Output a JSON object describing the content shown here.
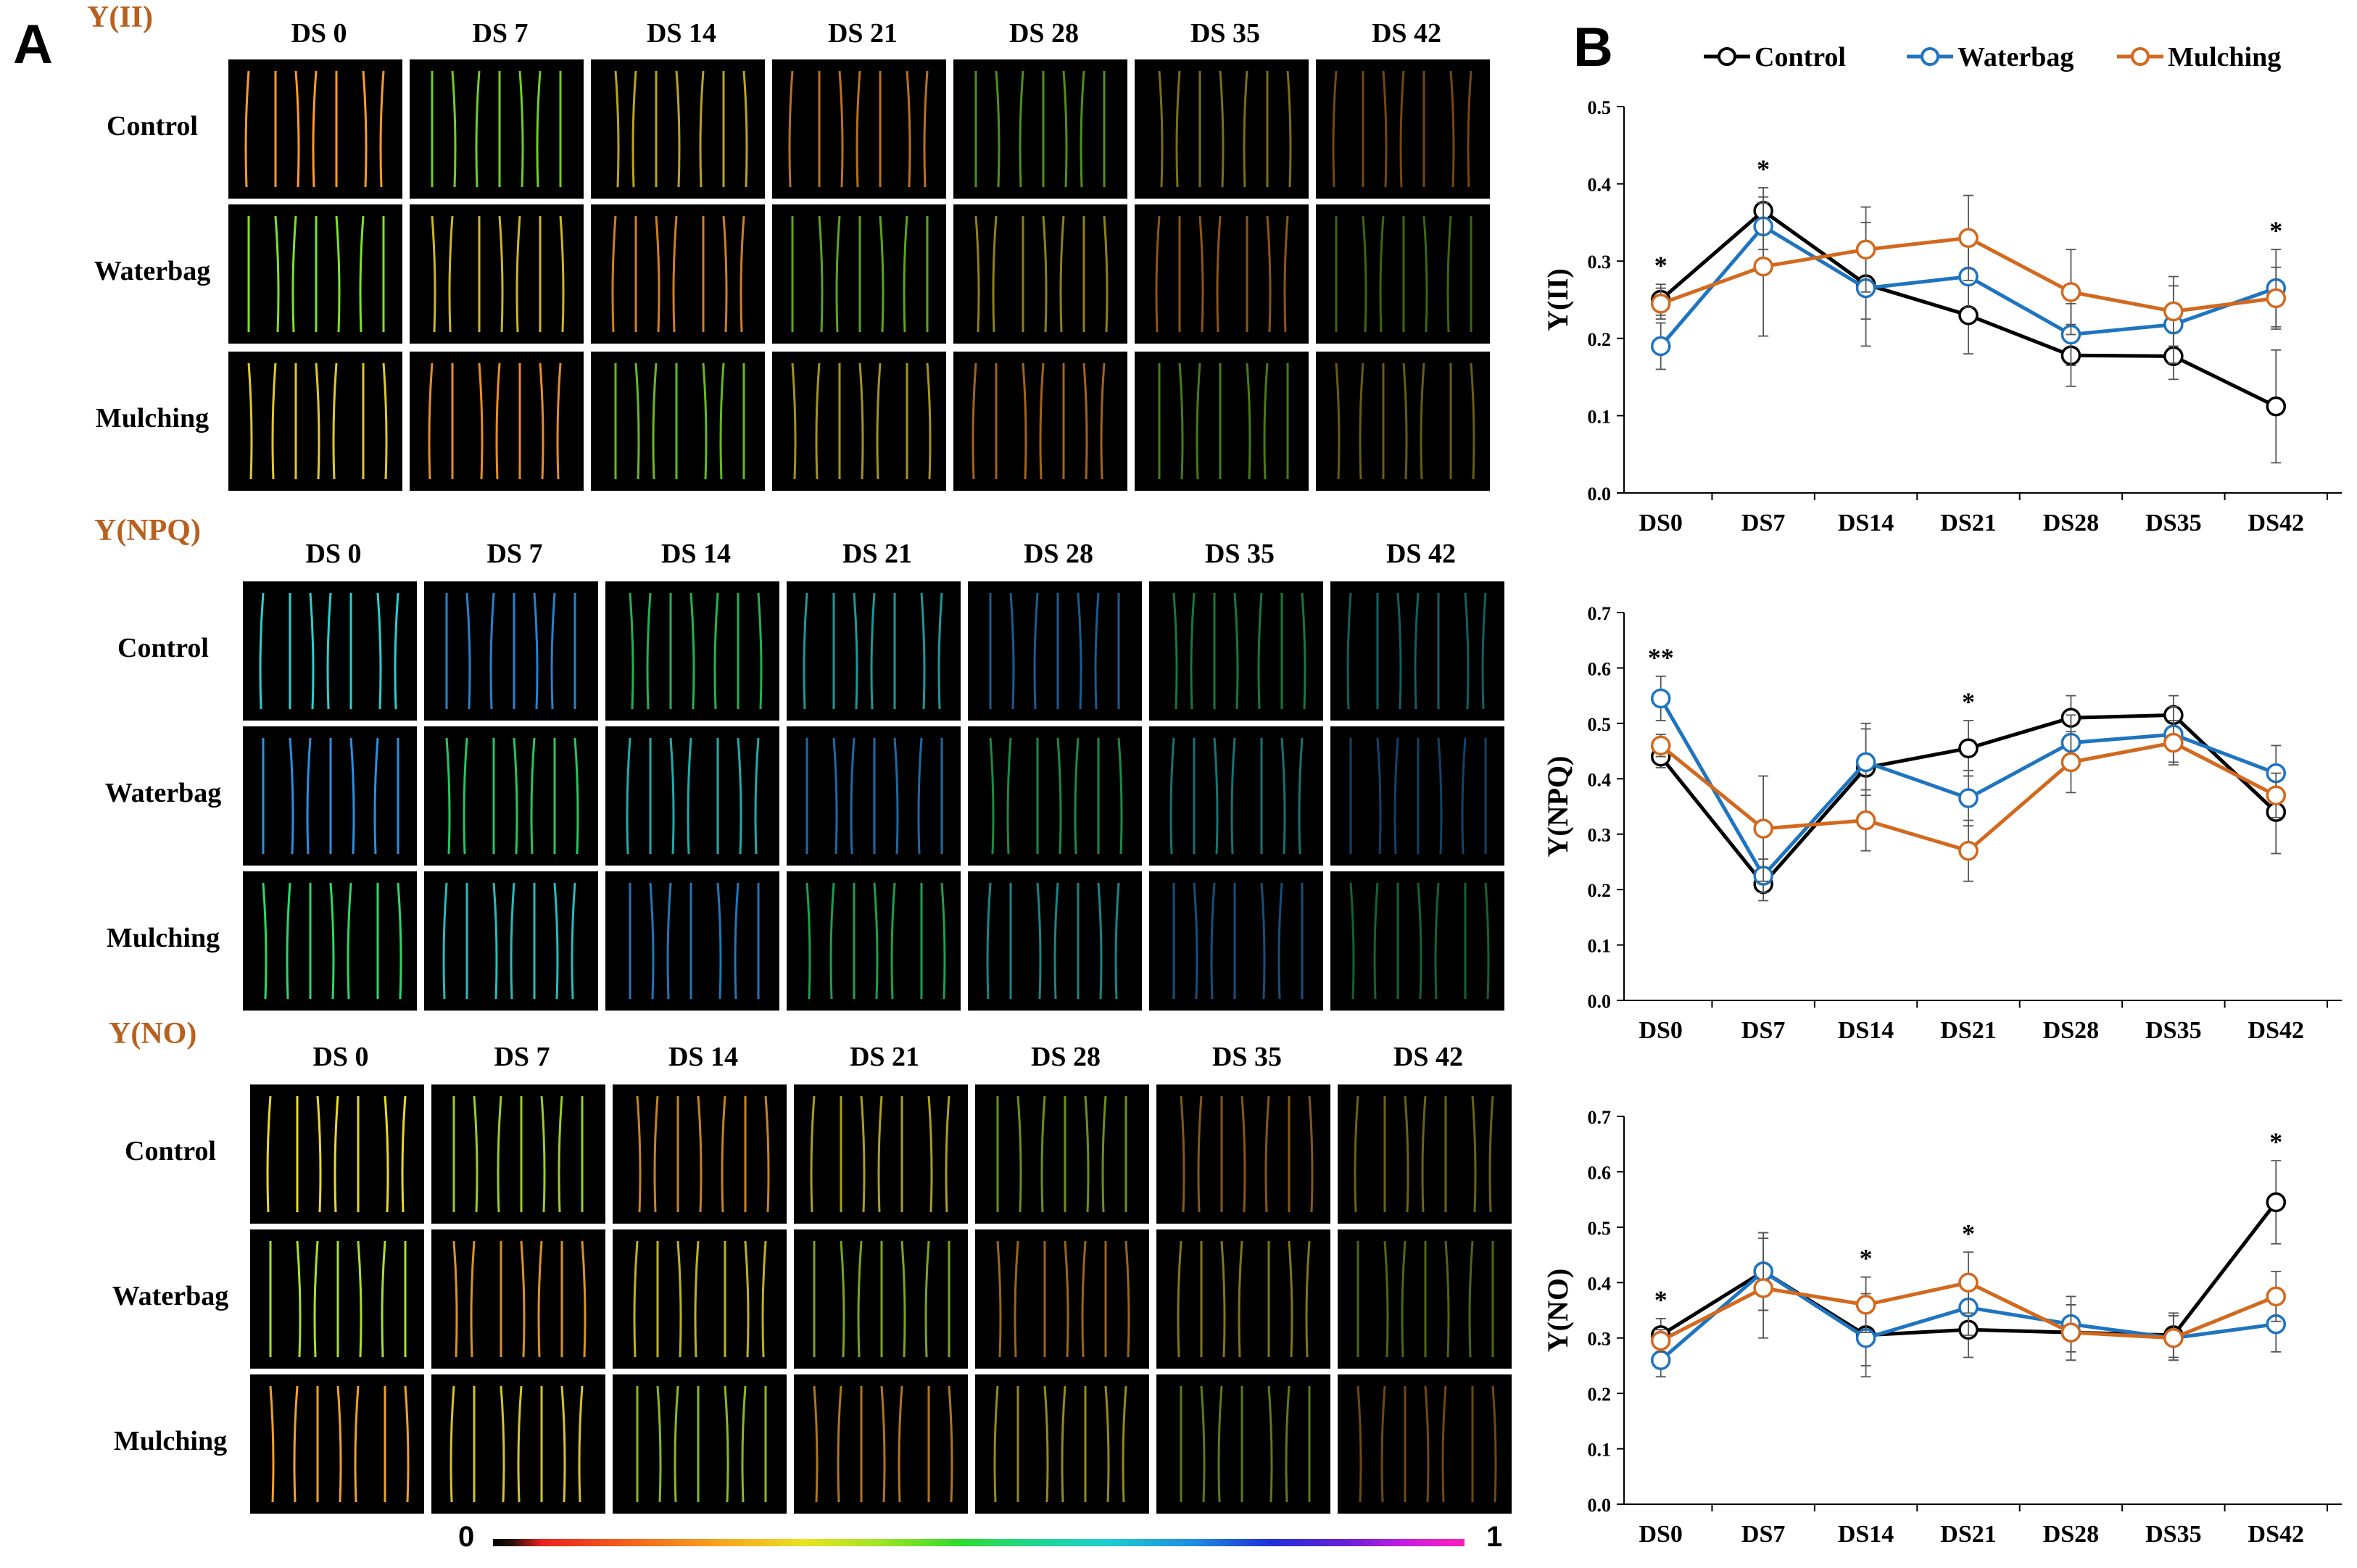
{
  "panelA": {
    "letter": "A",
    "sections": [
      {
        "title": "Y(II)",
        "columns": [
          "DS 0",
          "DS 7",
          "DS 14",
          "DS 21",
          "DS 28",
          "DS 35",
          "DS 42"
        ],
        "rows": [
          "Control",
          "Waterbag",
          "Mulching"
        ],
        "palette": [
          "#ff9a2a",
          "#7fe02a",
          "#e0c82a"
        ]
      },
      {
        "title": "Y(NPQ)",
        "columns": [
          "DS 0",
          "DS 7",
          "DS 14",
          "DS 21",
          "DS 28",
          "DS 35",
          "DS 42"
        ],
        "rows": [
          "Control",
          "Waterbag",
          "Mulching"
        ],
        "palette": [
          "#2acfcf",
          "#2a8fe0",
          "#2ad86a"
        ]
      },
      {
        "title": "Y(NO)",
        "columns": [
          "DS 0",
          "DS 7",
          "DS 14",
          "DS 21",
          "DS 28",
          "DS 35",
          "DS 42"
        ],
        "rows": [
          "Control",
          "Waterbag",
          "Mulching"
        ],
        "palette": [
          "#e8d82a",
          "#a8e02a",
          "#f0a02a"
        ]
      }
    ],
    "colorbar": {
      "min_label": "0",
      "max_label": "1"
    }
  },
  "panelB": {
    "letter": "B"
  },
  "chart_data": [
    {
      "type": "line",
      "categories": [
        "DS0",
        "DS7",
        "DS14",
        "DS21",
        "DS28",
        "DS35",
        "DS42"
      ],
      "ylabel": "Y(II)",
      "ylim": [
        0,
        0.5
      ],
      "yticks": [
        "0.0",
        "0.1",
        "0.2",
        "0.3",
        "0.4",
        "0.5"
      ],
      "series": [
        {
          "name": "Control",
          "color": "#000000",
          "values": [
            0.25,
            0.365,
            0.27,
            0.23,
            0.178,
            0.177,
            0.112
          ],
          "errors": [
            0.02,
            0.03,
            0.08,
            0.05,
            0.04,
            0.03,
            0.073
          ]
        },
        {
          "name": "Waterbag",
          "color": "#1f74c0",
          "values": [
            0.19,
            0.345,
            0.265,
            0.28,
            0.205,
            0.218,
            0.265
          ],
          "errors": [
            0.03,
            0.03,
            0.04,
            0.04,
            0.04,
            0.05,
            0.05
          ]
        },
        {
          "name": "Mulching",
          "color": "#d2691e",
          "values": [
            0.245,
            0.293,
            0.315,
            0.33,
            0.26,
            0.235,
            0.252
          ],
          "errors": [
            0.02,
            0.09,
            0.055,
            0.055,
            0.055,
            0.045,
            0.04
          ]
        }
      ],
      "significance": [
        {
          "category": "DS0",
          "mark": "*"
        },
        {
          "category": "DS7",
          "mark": "*"
        },
        {
          "category": "DS42",
          "mark": "*"
        }
      ]
    },
    {
      "type": "line",
      "categories": [
        "DS0",
        "DS7",
        "DS14",
        "DS21",
        "DS28",
        "DS35",
        "DS42"
      ],
      "ylabel": "Y(NPQ)",
      "ylim": [
        0,
        0.7
      ],
      "yticks": [
        "0.0",
        "0.1",
        "0.2",
        "0.3",
        "0.4",
        "0.5",
        "0.6",
        "0.7"
      ],
      "series": [
        {
          "name": "Control",
          "color": "#000000",
          "values": [
            0.44,
            0.21,
            0.42,
            0.455,
            0.51,
            0.515,
            0.34
          ],
          "errors": [
            0.02,
            0.03,
            0.08,
            0.05,
            0.04,
            0.035,
            0.075
          ]
        },
        {
          "name": "Waterbag",
          "color": "#1f74c0",
          "values": [
            0.545,
            0.225,
            0.43,
            0.365,
            0.465,
            0.48,
            0.41
          ],
          "errors": [
            0.04,
            0.03,
            0.06,
            0.05,
            0.05,
            0.05,
            0.05
          ]
        },
        {
          "name": "Mulching",
          "color": "#d2691e",
          "values": [
            0.46,
            0.31,
            0.325,
            0.27,
            0.43,
            0.465,
            0.37
          ],
          "errors": [
            0.02,
            0.095,
            0.055,
            0.055,
            0.055,
            0.04,
            0.04
          ]
        }
      ],
      "significance": [
        {
          "category": "DS0",
          "mark": "**"
        },
        {
          "category": "DS21",
          "mark": "*"
        }
      ]
    },
    {
      "type": "line",
      "categories": [
        "DS0",
        "DS7",
        "DS14",
        "DS21",
        "DS28",
        "DS35",
        "DS42"
      ],
      "ylabel": "Y(NO)",
      "ylim": [
        0,
        0.7
      ],
      "yticks": [
        "0.0",
        "0.1",
        "0.2",
        "0.3",
        "0.4",
        "0.5",
        "0.6",
        "0.7"
      ],
      "series": [
        {
          "name": "Control",
          "color": "#000000",
          "values": [
            0.305,
            0.42,
            0.305,
            0.315,
            0.31,
            0.305,
            0.545
          ],
          "errors": [
            0.03,
            0.07,
            0.075,
            0.05,
            0.05,
            0.04,
            0.075
          ]
        },
        {
          "name": "Waterbag",
          "color": "#1f74c0",
          "values": [
            0.26,
            0.42,
            0.3,
            0.355,
            0.325,
            0.3,
            0.325
          ],
          "errors": [
            0.03,
            0.07,
            0.05,
            0.05,
            0.05,
            0.04,
            0.05
          ]
        },
        {
          "name": "Mulching",
          "color": "#d2691e",
          "values": [
            0.295,
            0.39,
            0.36,
            0.4,
            0.31,
            0.3,
            0.375
          ],
          "errors": [
            0.02,
            0.09,
            0.05,
            0.055,
            0.05,
            0.04,
            0.045
          ]
        }
      ],
      "significance": [
        {
          "category": "DS0",
          "mark": "*"
        },
        {
          "category": "DS14",
          "mark": "*"
        },
        {
          "category": "DS21",
          "mark": "*"
        },
        {
          "category": "DS42",
          "mark": "*"
        }
      ]
    }
  ],
  "legend": [
    {
      "name": "Control",
      "color": "#000000"
    },
    {
      "name": "Waterbag",
      "color": "#1f74c0"
    },
    {
      "name": "Mulching",
      "color": "#d2691e"
    }
  ]
}
